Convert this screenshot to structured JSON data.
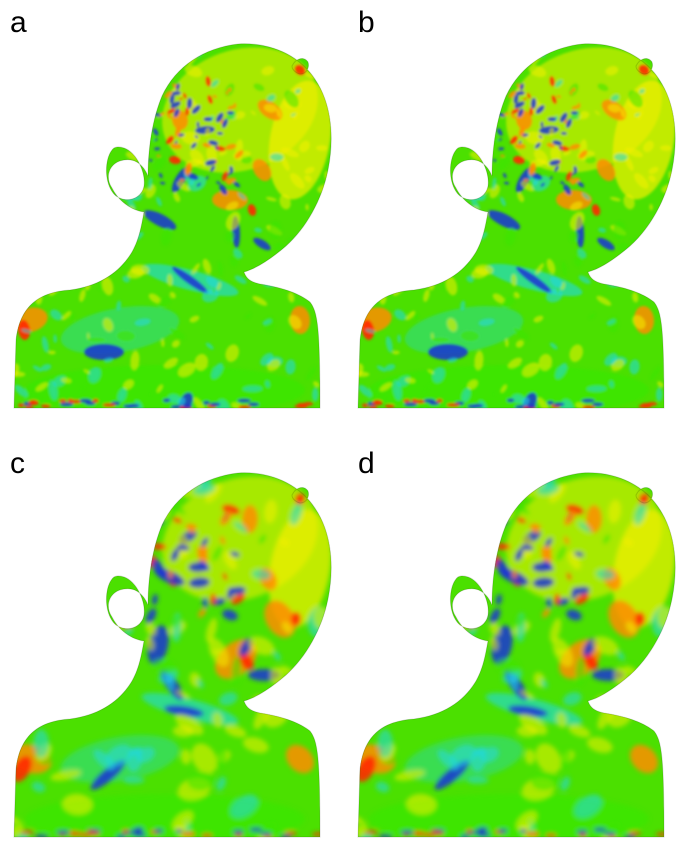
{
  "panels": [
    {
      "label": "a",
      "smoothing": "fine"
    },
    {
      "label": "b",
      "smoothing": "fine"
    },
    {
      "label": "c",
      "smoothing": "smooth"
    },
    {
      "label": "d",
      "smoothing": "smooth"
    }
  ],
  "colormap": {
    "red": "#ff2a00",
    "orange": "#ff8c00",
    "yellow": "#f4f000",
    "green": "#3ce600",
    "cyan": "#22d8e8",
    "blue": "#1a33d6",
    "base": "#4be000"
  }
}
